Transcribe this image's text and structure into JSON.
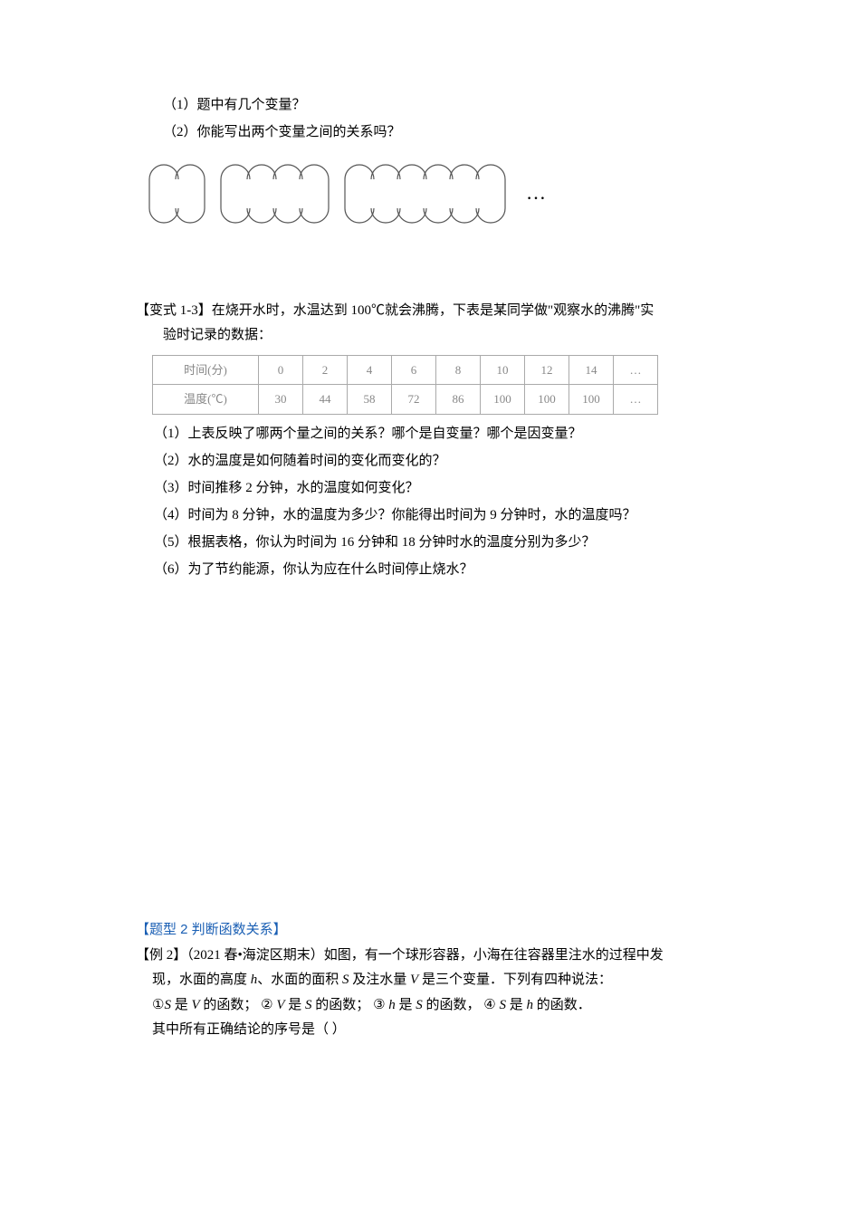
{
  "q1_sub1": "（1）题中有几个变量？",
  "q1_sub2": "（2）你能写出两个变量之间的关系吗？",
  "figure_ellipsis": "…",
  "variant1": {
    "label": "【变式 1-3】",
    "line1": "在烧开水时，水温达到 100℃就会沸腾，下表是某同学做\"观察水的沸腾\"实",
    "line2": "验时记录的数据：",
    "table": {
      "row1_label": "时间(分)",
      "row2_label": "温度(℃)",
      "columns": [
        "0",
        "2",
        "4",
        "6",
        "8",
        "10",
        "12",
        "14",
        "…"
      ],
      "values": [
        "30",
        "44",
        "58",
        "72",
        "86",
        "100",
        "100",
        "100",
        "…"
      ]
    },
    "subq": [
      "（1）上表反映了哪两个量之间的关系？哪个是自变量？哪个是因变量？",
      "（2）水的温度是如何随着时间的变化而变化的？",
      "（3）时间推移 2 分钟，水的温度如何变化？",
      "（4）时间为 8 分钟，水的温度为多少？你能得出时间为 9 分钟时，水的温度吗？",
      "（5）根据表格，你认为时间为 16 分钟和 18 分钟时水的温度分别为多少？",
      "（6）为了节约能源，你认为应在什么时间停止烧水？"
    ]
  },
  "section2": {
    "header": "【题型 2  判断函数关系】",
    "ex_label": "【例 2】",
    "ex_source": "（2021 春•海淀区期末）",
    "ex_line1_rest": "如图，有一个球形容器，小海在往容器里注水的过程中发",
    "ex_line2": "现，水面的高度 h、水面的面积 S 及注水量 V 是三个变量．下列有四种说法：",
    "ex_line3_parts": {
      "p1_pre": "①S 是 V 的函数；  ② V 是 S 的函数；  ③ h 是 S 的函数，  ④ S 是 h 的函数．"
    },
    "ex_line4": "其中所有正确结论的序号是（     ）"
  },
  "svg": {
    "circle_r": 16,
    "circle_gap": 29,
    "group1_count": 2,
    "group2_count": 4,
    "group3_count": 6,
    "stroke": "#555555",
    "stroke_width": 1.2,
    "colors": {
      "fill": "none"
    }
  }
}
